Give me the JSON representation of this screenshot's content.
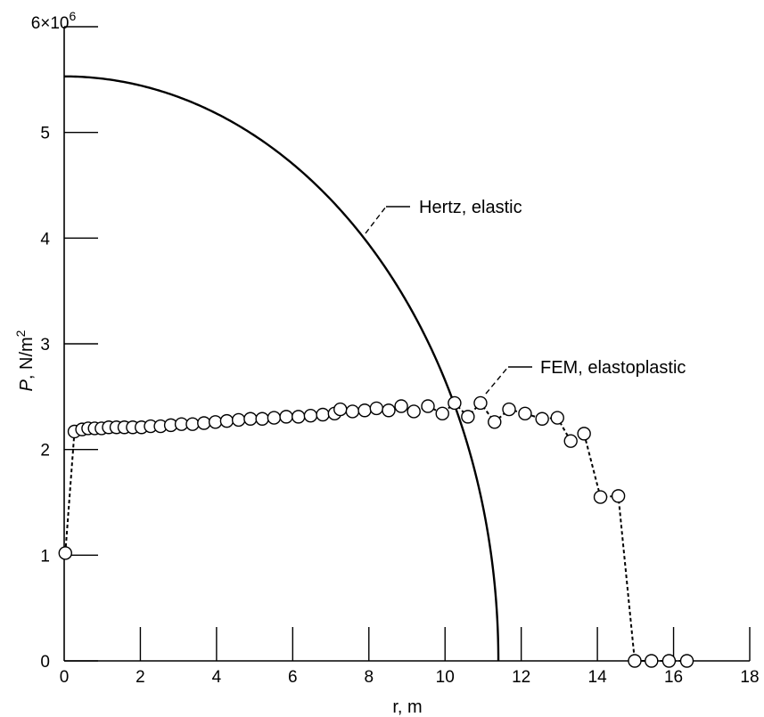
{
  "chart_data": {
    "type": "line",
    "xlabel": "r, m",
    "ylabel_italic": "P",
    "ylabel_rest": ", N/m",
    "ylabel_sup": "2",
    "y_multiplier_base": "6×10",
    "y_multiplier_exp": "6",
    "xlim": [
      0,
      18
    ],
    "ylim": [
      0,
      6
    ],
    "x_ticks": [
      0,
      2,
      4,
      6,
      8,
      10,
      12,
      14,
      16,
      18
    ],
    "y_ticks": [
      0,
      1,
      2,
      3,
      4,
      5
    ],
    "grid": false,
    "series": [
      {
        "name": "Hertz, elastic",
        "style": "solid",
        "curve": "hertz",
        "p_max": 5.53,
        "contact_radius": 11.4
      },
      {
        "name": "FEM, elastoplastic",
        "style": "dashed-with-circles",
        "points": [
          [
            0.03,
            1.02
          ],
          [
            0.27,
            2.17
          ],
          [
            0.47,
            2.19
          ],
          [
            0.63,
            2.2
          ],
          [
            0.8,
            2.2
          ],
          [
            0.98,
            2.2
          ],
          [
            1.17,
            2.21
          ],
          [
            1.37,
            2.21
          ],
          [
            1.58,
            2.21
          ],
          [
            1.8,
            2.21
          ],
          [
            2.03,
            2.21
          ],
          [
            2.27,
            2.22
          ],
          [
            2.53,
            2.22
          ],
          [
            2.8,
            2.23
          ],
          [
            3.08,
            2.24
          ],
          [
            3.37,
            2.24
          ],
          [
            3.67,
            2.25
          ],
          [
            3.97,
            2.26
          ],
          [
            4.27,
            2.27
          ],
          [
            4.58,
            2.28
          ],
          [
            4.89,
            2.29
          ],
          [
            5.2,
            2.29
          ],
          [
            5.51,
            2.3
          ],
          [
            5.83,
            2.31
          ],
          [
            6.15,
            2.31
          ],
          [
            6.47,
            2.32
          ],
          [
            6.79,
            2.33
          ],
          [
            7.1,
            2.34
          ],
          [
            7.25,
            2.38
          ],
          [
            7.57,
            2.36
          ],
          [
            7.89,
            2.37
          ],
          [
            8.2,
            2.39
          ],
          [
            8.52,
            2.37
          ],
          [
            8.85,
            2.41
          ],
          [
            9.18,
            2.36
          ],
          [
            9.55,
            2.41
          ],
          [
            9.93,
            2.34
          ],
          [
            10.25,
            2.44
          ],
          [
            10.6,
            2.31
          ],
          [
            10.93,
            2.44
          ],
          [
            11.3,
            2.26
          ],
          [
            11.68,
            2.38
          ],
          [
            12.1,
            2.34
          ],
          [
            12.55,
            2.29
          ],
          [
            12.95,
            2.3
          ],
          [
            13.3,
            2.08
          ],
          [
            13.65,
            2.15
          ],
          [
            14.08,
            1.55
          ],
          [
            14.55,
            1.56
          ],
          [
            14.98,
            0.0
          ],
          [
            15.42,
            0.0
          ],
          [
            15.88,
            0.0
          ],
          [
            16.35,
            0.0
          ]
        ]
      }
    ],
    "annotations": [
      {
        "text": "Hertz, elastic",
        "series": 0
      },
      {
        "text": "FEM, elastoplastic",
        "series": 1
      }
    ]
  }
}
